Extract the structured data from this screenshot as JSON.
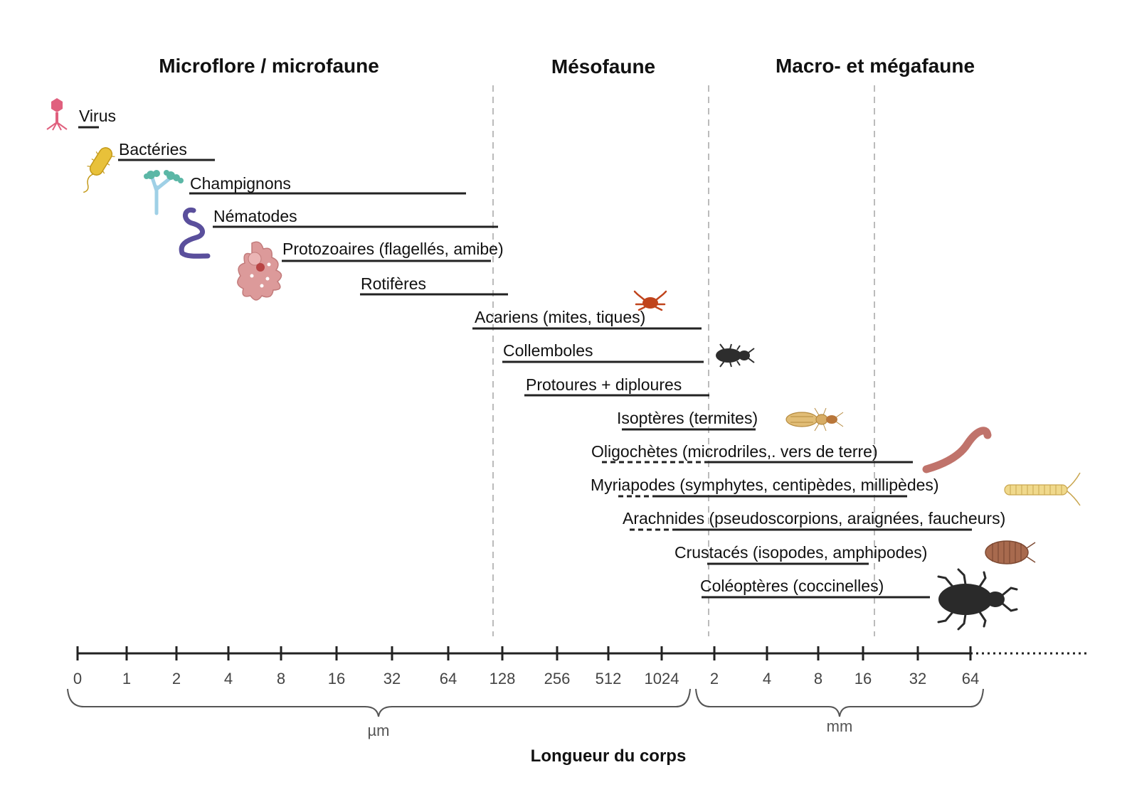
{
  "categories": [
    {
      "id": "micro",
      "label": "Microflore / microfaune"
    },
    {
      "id": "meso",
      "label": "Mésofaune"
    },
    {
      "id": "macro",
      "label": "Macro- et mégafaune"
    }
  ],
  "organisms": [
    {
      "id": "virus",
      "label": "Virus",
      "icon": "virus-icon",
      "icon_color": "#e0607e"
    },
    {
      "id": "bacteries",
      "label": "Bactéries",
      "icon": "bacterium-icon",
      "icon_color": "#e8c13a"
    },
    {
      "id": "champignons",
      "label": "Champignons",
      "icon": "fungus-icon",
      "icon_color": "#5bb7a6"
    },
    {
      "id": "nematodes",
      "label": "Nématodes",
      "icon": "nematode-icon",
      "icon_color": "#5a4f9c"
    },
    {
      "id": "protozoaires",
      "label": "Protozoaires (flagellés, amibe)",
      "icon": "amoeba-icon",
      "icon_color": "#d98b8b"
    },
    {
      "id": "rotiferes",
      "label": "Rotifères",
      "icon": "",
      "icon_color": ""
    },
    {
      "id": "acariens",
      "label": "Acariens (mites, tiques)",
      "icon": "mite-icon",
      "icon_color": "#c0441c"
    },
    {
      "id": "collemboles",
      "label": "Collemboles",
      "icon": "springtail-icon",
      "icon_color": "#2d2d2d"
    },
    {
      "id": "protoures",
      "label": "Protoures + diploures",
      "icon": "",
      "icon_color": ""
    },
    {
      "id": "isopteres",
      "label": "Isoptères (termites)",
      "icon": "termite-icon",
      "icon_color": "#d7ac64"
    },
    {
      "id": "oligochetes",
      "label": "Oligochètes (microdriles,. vers de terre)",
      "icon": "earthworm-icon",
      "icon_color": "#c0736b"
    },
    {
      "id": "myriapodes",
      "label": "Myriapodes (symphytes, centipèdes, millipèdes)",
      "icon": "millipede-icon",
      "icon_color": "#f0d98c"
    },
    {
      "id": "arachnides",
      "label": "Arachnides (pseudoscorpions, araignées, faucheurs)",
      "icon": "",
      "icon_color": ""
    },
    {
      "id": "crustaces",
      "label": "Crustacés (isopodes, amphipodes)",
      "icon": "woodlouse-icon",
      "icon_color": "#a86a4e"
    },
    {
      "id": "coleopteres",
      "label": "Coléoptères (coccinelles)",
      "icon": "beetle-icon",
      "icon_color": "#2a2a2a"
    }
  ],
  "axis": {
    "ticks": [
      "0",
      "1",
      "2",
      "4",
      "8",
      "16",
      "32",
      "64",
      "128",
      "256",
      "512",
      "1024",
      "2",
      "4",
      "8",
      "16",
      "32",
      "64"
    ],
    "unit_um": "µm",
    "unit_mm": "mm",
    "title": "Longueur du corps"
  }
}
